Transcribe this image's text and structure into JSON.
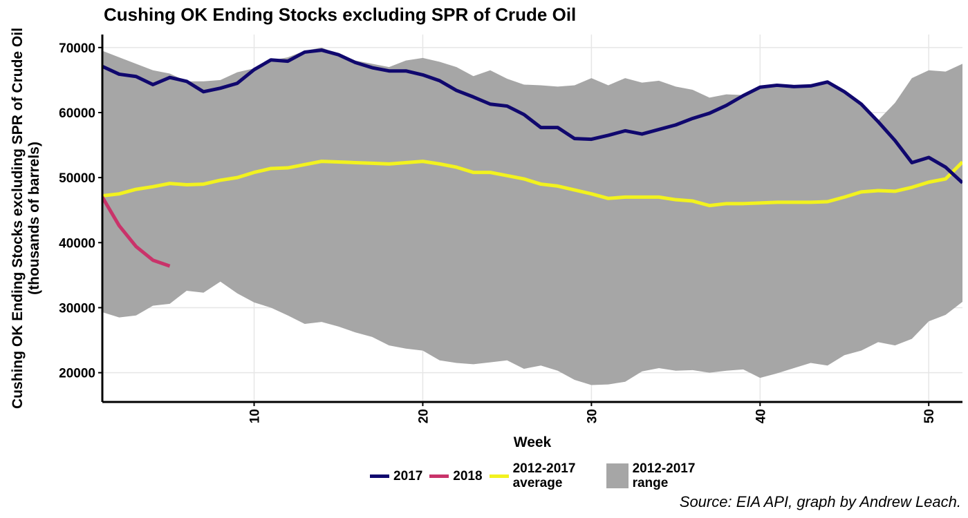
{
  "chart_data": {
    "type": "line",
    "title": "Cushing OK Ending Stocks excluding SPR of Crude Oil",
    "x_label": "Week",
    "y_label": [
      "Cushing OK Ending Stocks excluding SPR of Crude Oil",
      "(thousands of barrels)"
    ],
    "source": "Source: EIA API, graph by Andrew Leach.",
    "x": [
      1,
      2,
      3,
      4,
      5,
      6,
      7,
      8,
      9,
      10,
      11,
      12,
      13,
      14,
      15,
      16,
      17,
      18,
      19,
      20,
      21,
      22,
      23,
      24,
      25,
      26,
      27,
      28,
      29,
      30,
      31,
      32,
      33,
      34,
      35,
      36,
      37,
      38,
      39,
      40,
      41,
      42,
      43,
      44,
      45,
      46,
      47,
      48,
      49,
      50,
      51,
      52
    ],
    "xlim": [
      1,
      52
    ],
    "xticks": [
      10,
      20,
      30,
      40,
      50
    ],
    "ylim": [
      15500,
      72000
    ],
    "yticks": [
      20000,
      30000,
      40000,
      50000,
      60000,
      70000
    ],
    "grid": true,
    "legend": "bottom",
    "range": {
      "name": "2012-2017 range",
      "color": "#a6a6a6",
      "high": [
        69500,
        68500,
        67500,
        66500,
        66000,
        64800,
        64800,
        65000,
        66200,
        66800,
        68000,
        68500,
        69500,
        70000,
        69000,
        68000,
        67500,
        67000,
        68000,
        68400,
        67800,
        67000,
        65600,
        66500,
        65200,
        64300,
        64200,
        64000,
        64200,
        65300,
        64200,
        65300,
        64600,
        64900,
        64000,
        63500,
        62300,
        62800,
        62700,
        64000,
        64300,
        64000,
        64100,
        64800,
        63200,
        61300,
        58800,
        61500,
        65300,
        66500,
        66300,
        67500
      ],
      "low": [
        29300,
        28500,
        28800,
        30300,
        30600,
        32600,
        32300,
        34000,
        32200,
        30800,
        30000,
        28800,
        27500,
        27800,
        27100,
        26200,
        25500,
        24200,
        23700,
        23400,
        21900,
        21500,
        21300,
        21600,
        21900,
        20600,
        21100,
        20300,
        18900,
        18100,
        18200,
        18600,
        20200,
        20700,
        20300,
        20400,
        20000,
        20300,
        20500,
        19200,
        19900,
        20700,
        21500,
        21100,
        22700,
        23400,
        24700,
        24200,
        25200,
        27900,
        28900,
        30900
      ]
    },
    "series": [
      {
        "name": "2017",
        "color": "#10086e",
        "values": [
          67100,
          65900,
          65550,
          64300,
          65400,
          64800,
          63200,
          63750,
          64500,
          66600,
          68100,
          67900,
          69300,
          69600,
          68900,
          67700,
          66900,
          66400,
          66400,
          65800,
          64900,
          63400,
          62400,
          61300,
          61000,
          59700,
          57700,
          57700,
          56000,
          55900,
          56500,
          57200,
          56700,
          57400,
          58100,
          59100,
          59900,
          61100,
          62600,
          63900,
          64200,
          64000,
          64100,
          64700,
          63200,
          61300,
          58600,
          55700,
          52300,
          53100,
          51600,
          49200
        ]
      },
      {
        "name": "2018",
        "color": "#c9336a",
        "values": [
          47000,
          42600,
          39400,
          37300,
          36400,
          null,
          null,
          null,
          null,
          null,
          null,
          null,
          null,
          null,
          null,
          null,
          null,
          null,
          null,
          null,
          null,
          null,
          null,
          null,
          null,
          null,
          null,
          null,
          null,
          null,
          null,
          null,
          null,
          null,
          null,
          null,
          null,
          null,
          null,
          null,
          null,
          null,
          null,
          null,
          null,
          null,
          null,
          null,
          null,
          null,
          null,
          null
        ]
      },
      {
        "name": "2012-2017 average",
        "color": "#f2f21f",
        "values": [
          47200,
          47500,
          48200,
          48600,
          49100,
          48900,
          49000,
          49600,
          50000,
          50800,
          51400,
          51500,
          52000,
          52500,
          52400,
          52300,
          52200,
          52100,
          52300,
          52500,
          52100,
          51600,
          50800,
          50800,
          50300,
          49800,
          49000,
          48700,
          48100,
          47500,
          46800,
          47000,
          47000,
          47000,
          46600,
          46400,
          45700,
          46000,
          46000,
          46100,
          46200,
          46200,
          46200,
          46300,
          47000,
          47800,
          48000,
          47900,
          48500,
          49300,
          49800,
          52400
        ]
      }
    ]
  }
}
